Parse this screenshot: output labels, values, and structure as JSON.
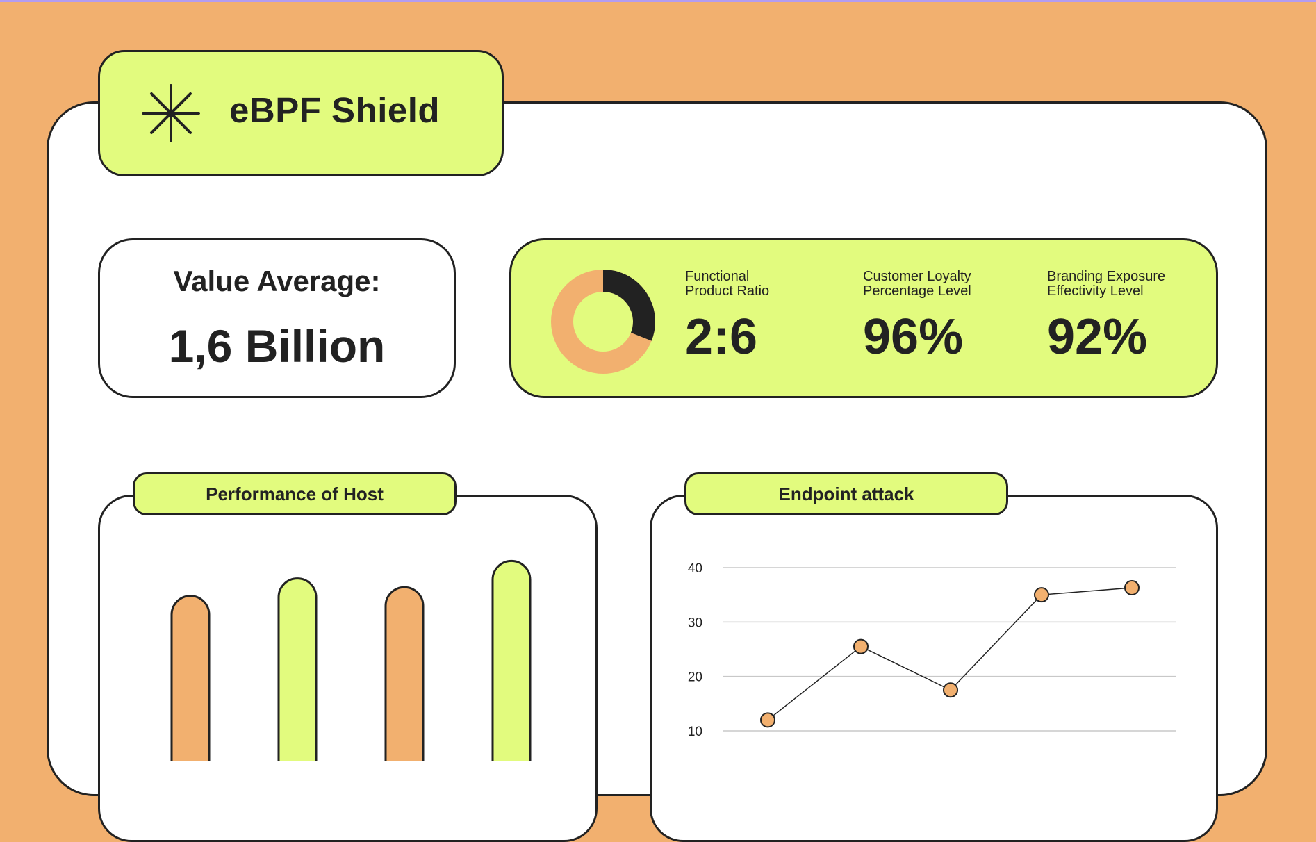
{
  "colors": {
    "background": "#f2b06f",
    "accent_lime": "#e2fb7e",
    "accent_orange": "#f2b06f",
    "ink": "#222222",
    "card": "#ffffff"
  },
  "header": {
    "icon": "asterisk-icon",
    "title": "eBPF Shield"
  },
  "value_average": {
    "label": "Value Average:",
    "amount": "1,6 Billion"
  },
  "metrics": {
    "donut": {
      "dark_fraction": 0.31,
      "dark_color": "#222222",
      "light_color": "#f2b06f"
    },
    "items": [
      {
        "label_line1": "Functional",
        "label_line2": "Product Ratio",
        "value": "2:6"
      },
      {
        "label_line1": "Customer Loyalty",
        "label_line2": "Percentage Level",
        "value": "96%"
      },
      {
        "label_line1": "Branding Exposure",
        "label_line2": "Effectivity Level",
        "value": "92%"
      }
    ]
  },
  "panels": {
    "host": {
      "title": "Performance of Host"
    },
    "attack": {
      "title": "Endpoint attack"
    }
  },
  "chart_data": [
    {
      "type": "bar",
      "title": "Performance of Host",
      "categories": [
        "",
        "",
        "",
        ""
      ],
      "values": [
        66,
        72,
        69,
        78
      ],
      "colors": [
        "#f2b06f",
        "#e2fb7e",
        "#f2b06f",
        "#e2fb7e"
      ],
      "ylim": [
        0,
        100
      ],
      "grid": false
    },
    {
      "type": "line",
      "title": "Endpoint attack",
      "x": [
        1,
        2,
        3,
        4,
        5
      ],
      "values": [
        12,
        25.5,
        17.5,
        35,
        36.3
      ],
      "ylim": [
        0,
        40
      ],
      "yticks": [
        10,
        20,
        30,
        40
      ],
      "grid": true,
      "marker_color": "#f2b06f"
    }
  ]
}
